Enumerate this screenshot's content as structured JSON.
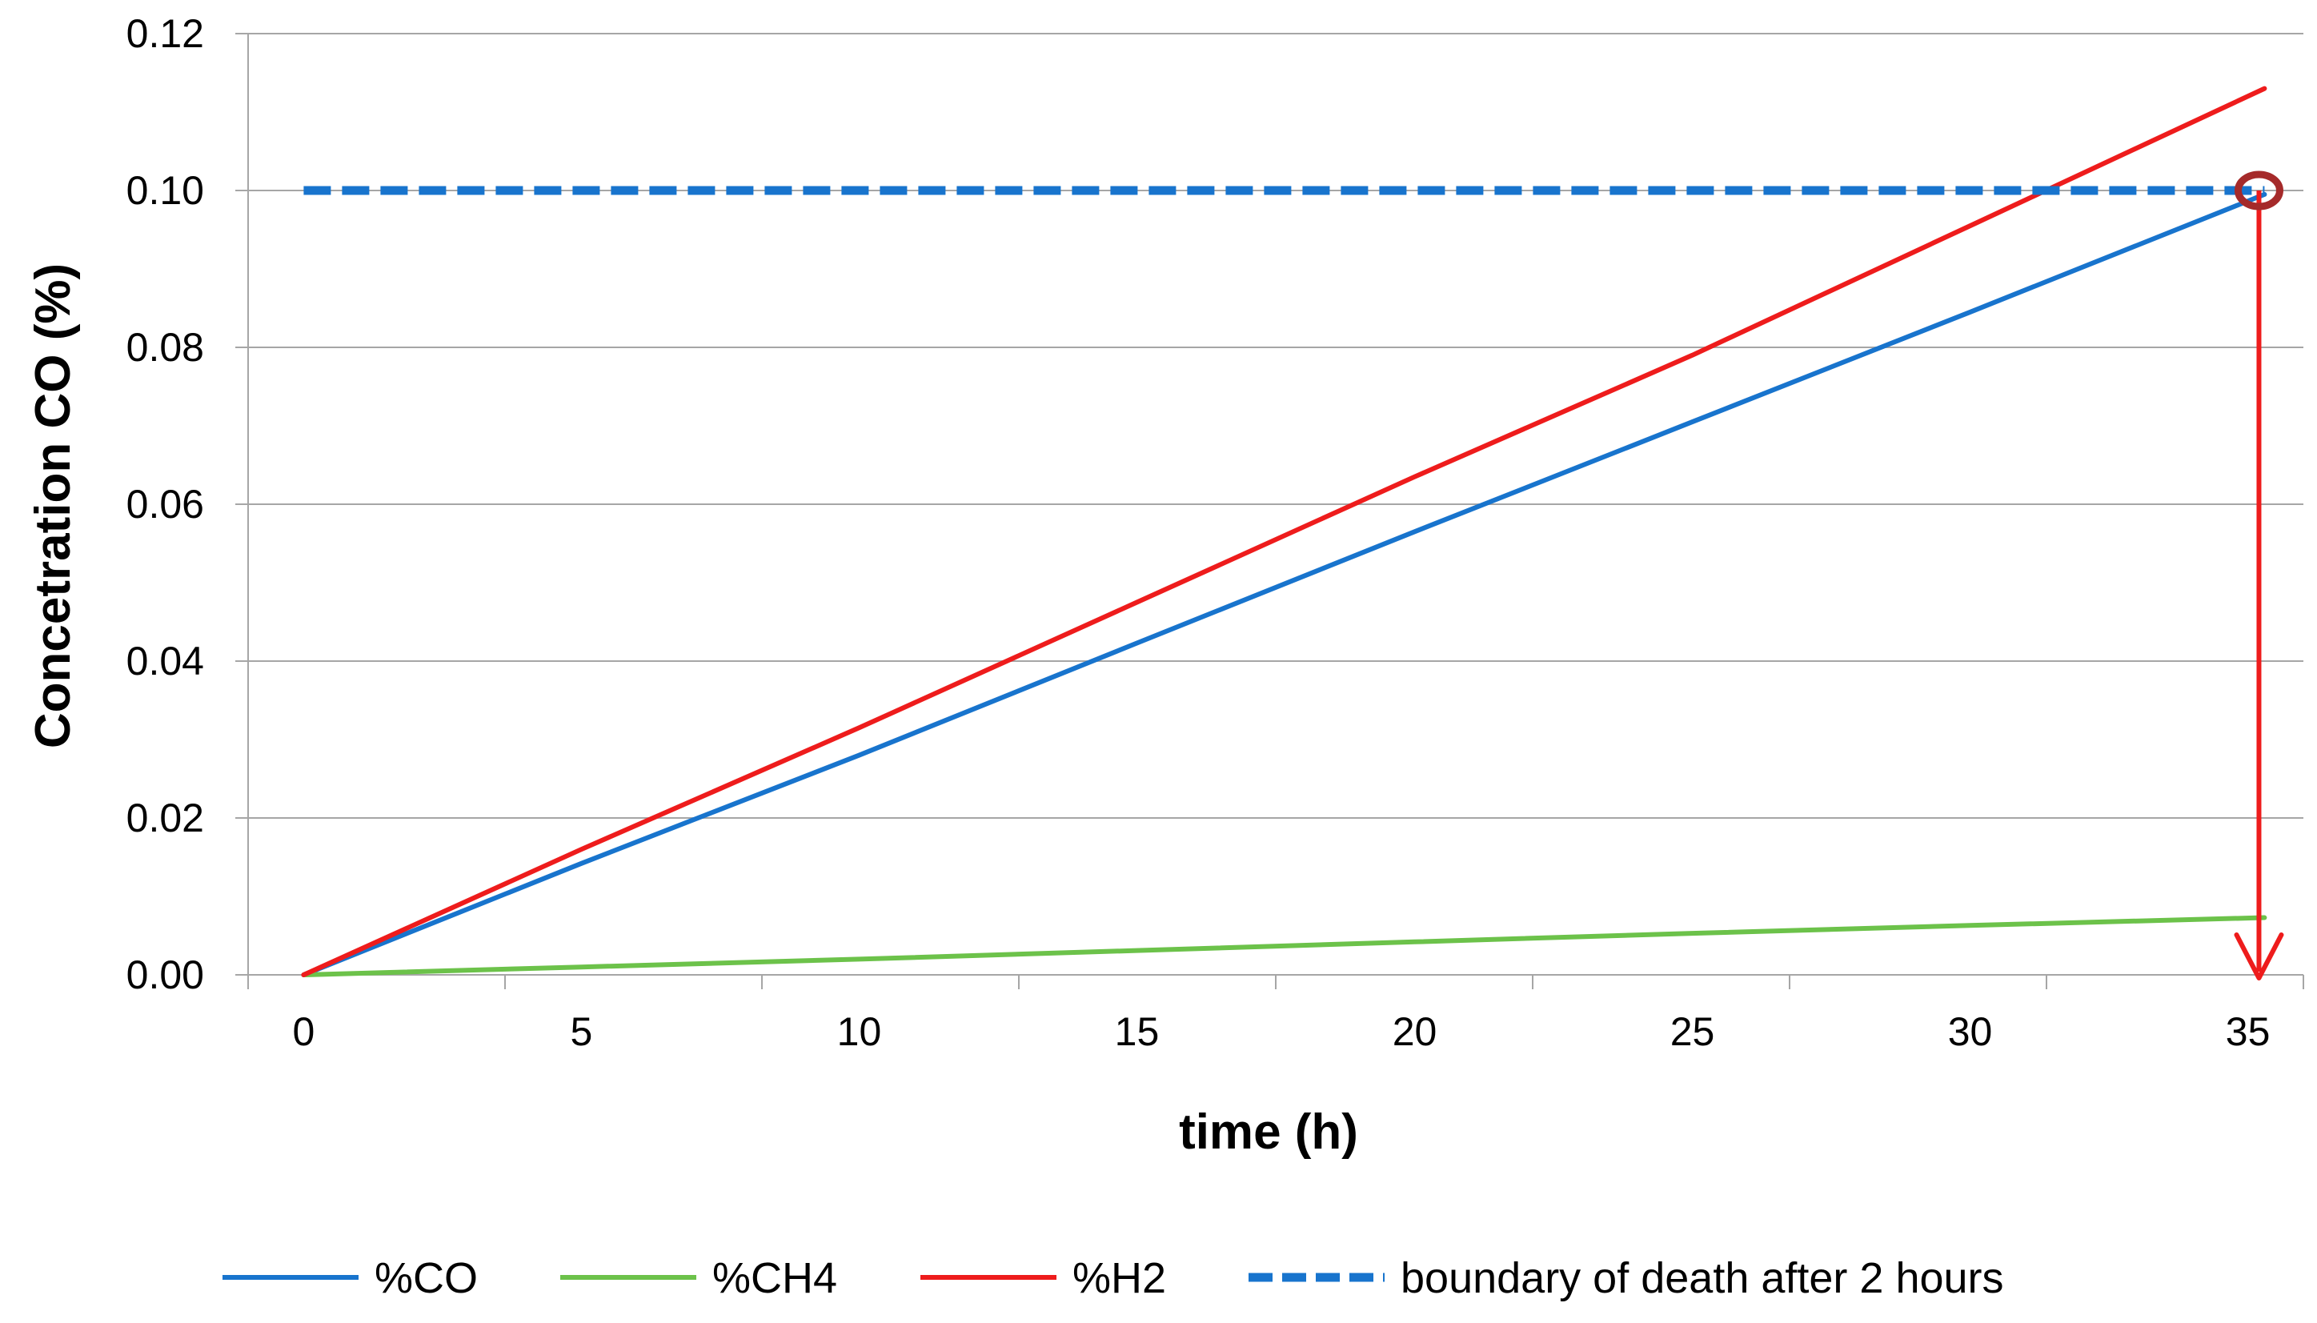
{
  "chart_data": {
    "type": "line",
    "title": "",
    "xlabel": "time (h)",
    "ylabel": "Concetration CO (%)",
    "xlim": [
      -1,
      36
    ],
    "ylim": [
      0,
      0.12
    ],
    "x_ticks": [
      0,
      5,
      10,
      15,
      20,
      25,
      30,
      35
    ],
    "x_tick_labels": [
      "0",
      "5",
      "10",
      "15",
      "20",
      "25",
      "30",
      "35"
    ],
    "y_ticks": [
      0,
      0.02,
      0.04,
      0.06,
      0.08,
      0.1,
      0.12
    ],
    "y_tick_labels": [
      "0.00",
      "0.02",
      "0.04",
      "0.06",
      "0.08",
      "0.10",
      "0.12"
    ],
    "grid": "horizontal",
    "legend_position": "bottom",
    "series": [
      {
        "name": "%CO",
        "color": "#1874CD",
        "style": "solid",
        "x": [
          0,
          5,
          10,
          15,
          20,
          25,
          30,
          35.3
        ],
        "values": [
          0,
          0.0142,
          0.028,
          0.0423,
          0.0565,
          0.0705,
          0.0845,
          0.0995
        ]
      },
      {
        "name": "%CH4",
        "color": "#6CC24A",
        "style": "solid",
        "x": [
          0,
          5,
          10,
          15,
          20,
          25,
          30,
          35.3
        ],
        "values": [
          0,
          0.001,
          0.002,
          0.0031,
          0.0042,
          0.0053,
          0.0063,
          0.0073
        ]
      },
      {
        "name": "%H2",
        "color": "#EE1C1C",
        "style": "solid",
        "x": [
          0,
          5,
          10,
          15,
          20,
          25,
          30,
          35.3
        ],
        "values": [
          0,
          0.016,
          0.0315,
          0.0475,
          0.0635,
          0.079,
          0.0955,
          0.113
        ]
      },
      {
        "name": "boundary of death after 2 hours",
        "color": "#1874CD",
        "style": "dashed",
        "x": [
          0,
          35.3
        ],
        "values": [
          0.1,
          0.1
        ]
      }
    ],
    "annotations": {
      "marker": {
        "x": 35.2,
        "y": 0.1,
        "shape": "circle",
        "color": "#A52A2A"
      },
      "arrow": {
        "x": 35.2,
        "y_from": 0.1,
        "y_to": 0,
        "color": "#EE1C1C"
      }
    }
  }
}
